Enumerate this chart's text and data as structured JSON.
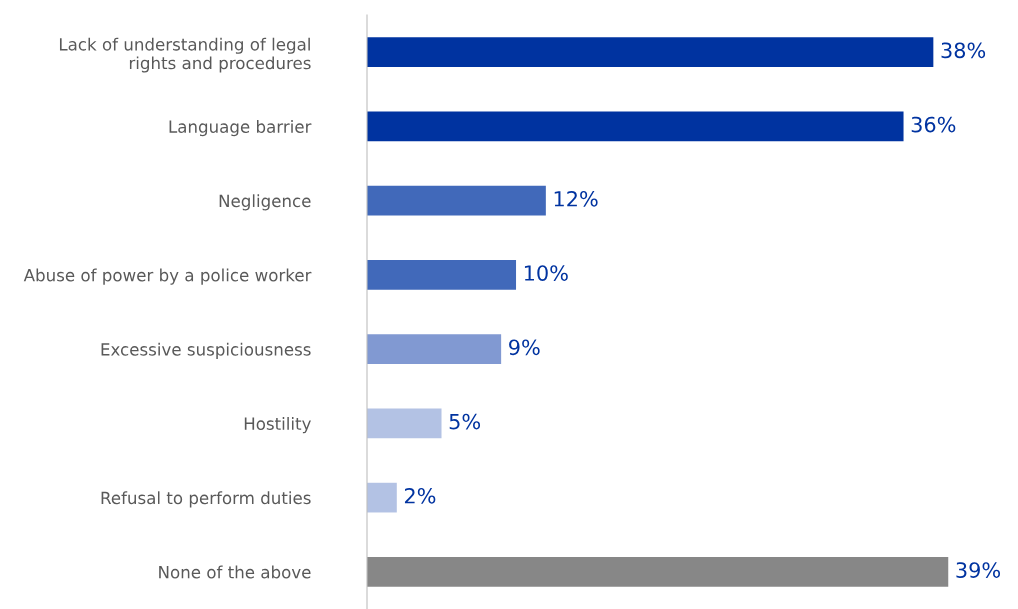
{
  "chart_data": {
    "type": "bar",
    "orientation": "horizontal",
    "categories": [
      "Lack of understanding of legal\nrights and procedures",
      "Language barrier",
      "Negligence",
      "Abuse of power by a police worker",
      "Excessive suspiciousness",
      "Hostility",
      "Refusal to perform duties",
      "None of the above"
    ],
    "values": [
      38,
      36,
      12,
      10,
      9,
      5,
      2,
      39
    ],
    "colors": [
      "#0033a0",
      "#0033a0",
      "#4169ba",
      "#4169ba",
      "#8199d2",
      "#b3c2e4",
      "#b3c2e4",
      "#878787"
    ],
    "value_labels": [
      "38%",
      "36%",
      "12%",
      "10%",
      "9%",
      "5%",
      "2%",
      "39%"
    ],
    "tick_labels": "y",
    "grid": false,
    "legend": false
  }
}
